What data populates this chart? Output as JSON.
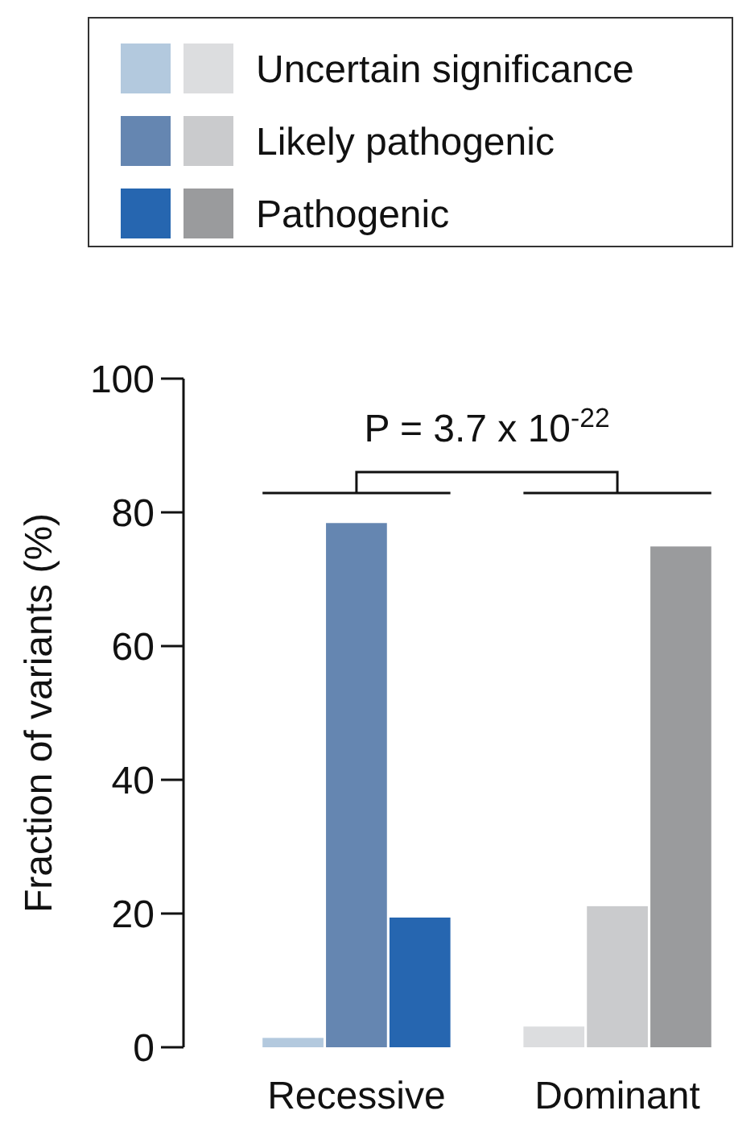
{
  "chart_data": {
    "type": "bar",
    "ylabel": "Fraction of variants (%)",
    "categories": [
      "Recessive",
      "Dominant"
    ],
    "series": [
      {
        "name": "Uncertain significance",
        "colors": [
          "#b3c9de",
          "#dcdddf"
        ],
        "values": [
          1.4,
          3.1
        ]
      },
      {
        "name": "Likely pathogenic",
        "colors": [
          "#6586b1",
          "#cacbcd"
        ],
        "values": [
          78.4,
          21.1
        ]
      },
      {
        "name": "Pathogenic",
        "colors": [
          "#2666b0",
          "#9a9b9d"
        ],
        "values": [
          19.4,
          74.9
        ]
      }
    ],
    "ylim": [
      0,
      100
    ],
    "yticks": [
      0,
      20,
      40,
      60,
      80,
      100
    ],
    "grid": false,
    "legend": "top",
    "annotations": [
      "P = 3.7 x 10$^{-22}$"
    ]
  }
}
